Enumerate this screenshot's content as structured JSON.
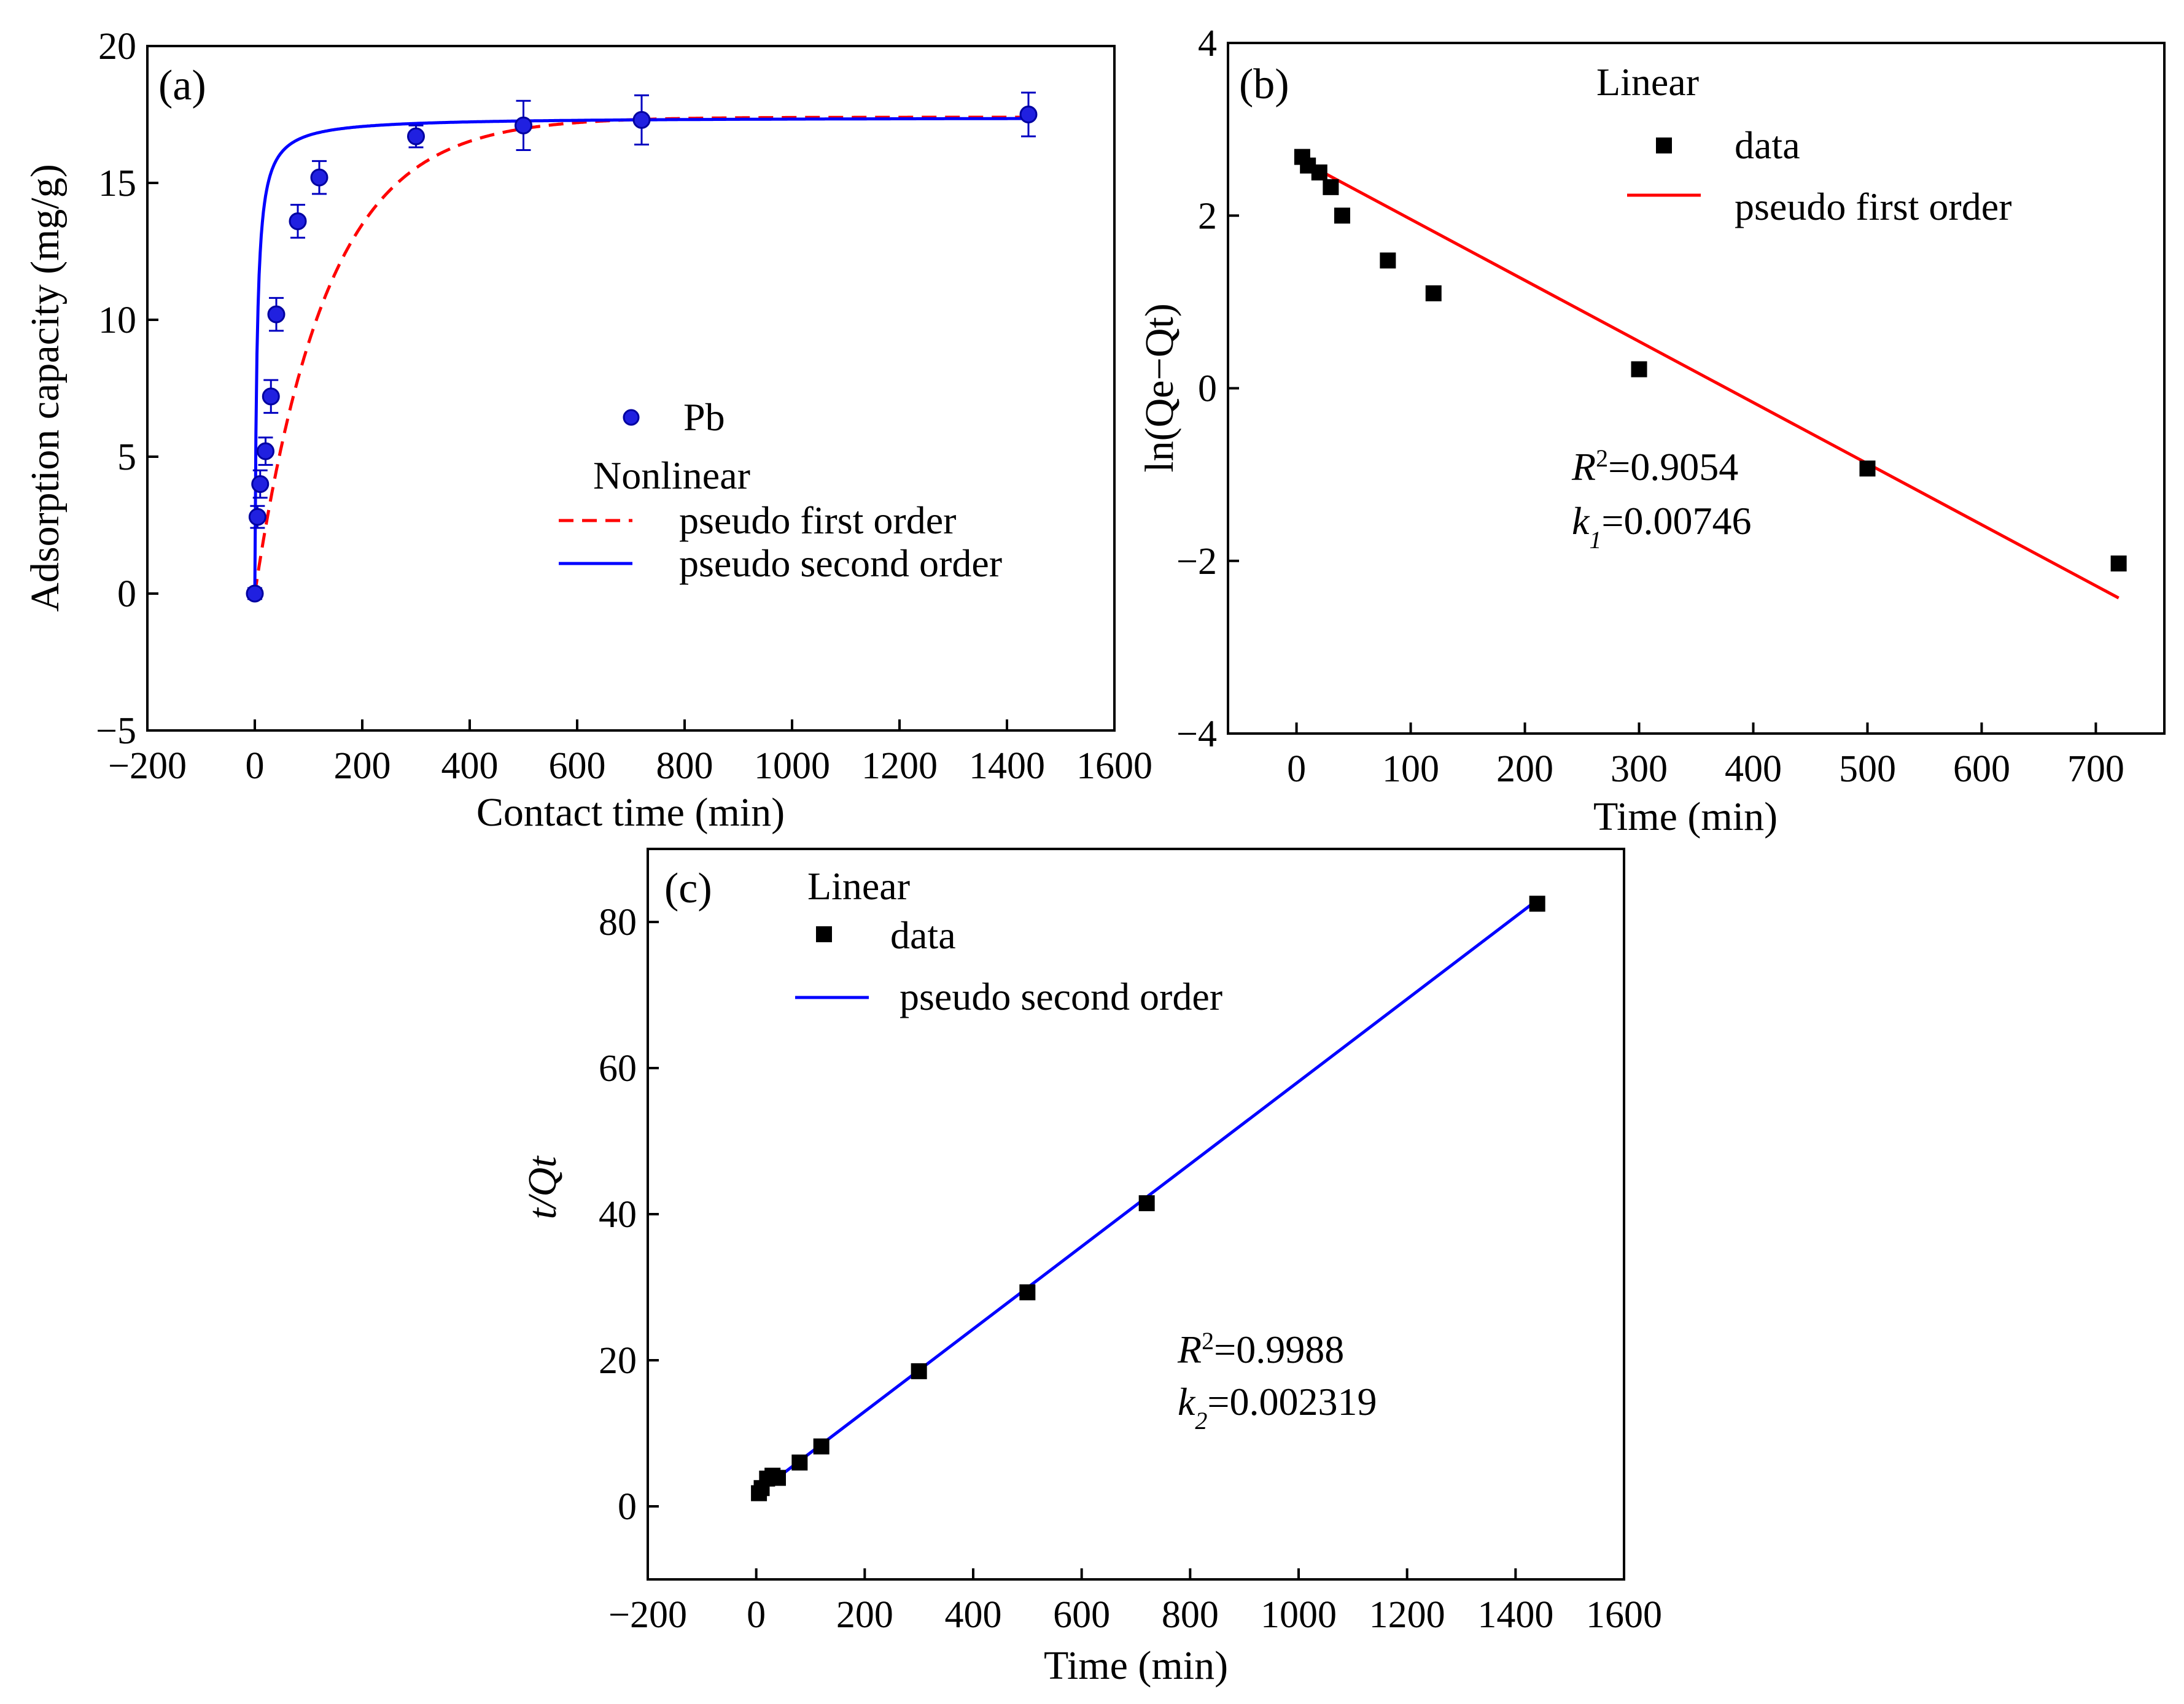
{
  "chart_data": [
    {
      "panel": "(a)",
      "type": "scatter",
      "xlabel": "Contact time (min)",
      "ylabel": "Adsorption capacity (mg/g)",
      "xlim": [
        -200,
        1600
      ],
      "ylim": [
        -5,
        20
      ],
      "xticks": [
        -200,
        0,
        200,
        400,
        600,
        800,
        1000,
        1200,
        1400,
        1600
      ],
      "yticks": [
        -5,
        0,
        5,
        10,
        15,
        20
      ],
      "xtick_labels": [
        "−200",
        "0",
        "200",
        "400",
        "600",
        "800",
        "1000",
        "1200",
        "1400",
        "1600"
      ],
      "ytick_labels": [
        "−5",
        "0",
        "5",
        "10",
        "15",
        "20"
      ],
      "legend": {
        "marker_label": "Pb",
        "group_title": "Nonlinear",
        "line1_label": "pseudo first order",
        "line2_label": "pseudo second order"
      },
      "series": [
        {
          "name": "Pb",
          "kind": "points",
          "color": "#2020e0",
          "x": [
            0,
            5,
            10,
            20,
            30,
            40,
            80,
            120,
            300,
            500,
            720,
            1440
          ],
          "y": [
            0.0,
            2.8,
            4.0,
            5.2,
            7.2,
            10.2,
            13.6,
            15.2,
            16.7,
            17.1,
            17.3,
            17.5
          ],
          "err": [
            0.2,
            0.4,
            0.5,
            0.5,
            0.6,
            0.6,
            0.6,
            0.6,
            0.4,
            0.9,
            0.9,
            0.8
          ]
        },
        {
          "name": "pseudo first order",
          "kind": "line",
          "style": "dashed",
          "color": "#ff0000",
          "model": "pfo",
          "qe": 17.4,
          "k": 0.00746
        },
        {
          "name": "pseudo second order",
          "kind": "line",
          "style": "solid",
          "color": "#0000ff",
          "model": "pso",
          "qe": 17.4,
          "k": 0.0145
        }
      ]
    },
    {
      "panel": "(b)",
      "type": "scatter",
      "xlabel": "Time (min)",
      "ylabel": "ln(Qe−Qt)",
      "xlim": [
        -60,
        760
      ],
      "ylim": [
        -4,
        4
      ],
      "xticks": [
        0,
        100,
        200,
        300,
        400,
        500,
        600,
        700
      ],
      "yticks": [
        -4,
        -2,
        0,
        2,
        4
      ],
      "xtick_labels": [
        "0",
        "100",
        "200",
        "300",
        "400",
        "500",
        "600",
        "700"
      ],
      "ytick_labels": [
        "−4",
        "−2",
        "0",
        "2",
        "4"
      ],
      "legend": {
        "title": "Linear",
        "points_label": "data",
        "line_label": "pseudo first order"
      },
      "annotation": {
        "r2_prefix": "R",
        "r2_sup": "2",
        "r2_value": "=0.9054",
        "k_prefix": "k",
        "k_sub": "1",
        "k_value": "=0.00746"
      },
      "series": [
        {
          "name": "data",
          "kind": "points",
          "color": "#000000",
          "x": [
            5,
            10,
            20,
            30,
            40,
            80,
            120,
            300,
            500,
            720
          ],
          "y": [
            2.68,
            2.58,
            2.5,
            2.33,
            2.0,
            1.48,
            1.1,
            0.22,
            -0.93,
            -2.03
          ]
        },
        {
          "name": "pseudo first order",
          "kind": "line",
          "color": "#ff0000",
          "x": [
            5,
            720
          ],
          "y": [
            2.63,
            -2.43
          ]
        }
      ]
    },
    {
      "panel": "(c)",
      "type": "scatter",
      "xlabel": "Time (min)",
      "ylabel": "t/Qt",
      "xlim": [
        -200,
        1600
      ],
      "ylim": [
        -10,
        90
      ],
      "xticks": [
        -200,
        0,
        200,
        400,
        600,
        800,
        1000,
        1200,
        1400,
        1600
      ],
      "yticks": [
        0,
        20,
        40,
        60,
        80
      ],
      "xtick_labels": [
        "−200",
        "0",
        "200",
        "400",
        "600",
        "800",
        "1000",
        "1200",
        "1400",
        "1600"
      ],
      "ytick_labels": [
        "0",
        "20",
        "40",
        "60",
        "80"
      ],
      "legend": {
        "title": "Linear",
        "points_label": "data",
        "line_label": "pseudo second order"
      },
      "annotation": {
        "r2_prefix": "R",
        "r2_sup": "2",
        "r2_value": "=0.9988",
        "k_prefix": "k",
        "k_sub": "2",
        "k_value": "=0.002319"
      },
      "series": [
        {
          "name": "data",
          "kind": "points",
          "color": "#000000",
          "x": [
            5,
            10,
            20,
            30,
            40,
            80,
            120,
            300,
            500,
            720,
            1440
          ],
          "y": [
            1.8,
            2.5,
            3.8,
            4.2,
            3.9,
            6.0,
            8.2,
            18.5,
            29.3,
            41.5,
            82.5
          ]
        },
        {
          "name": "pseudo second order",
          "kind": "line",
          "color": "#0000ff",
          "x": [
            0,
            1440
          ],
          "y": [
            1.7,
            83.0
          ]
        }
      ]
    }
  ]
}
